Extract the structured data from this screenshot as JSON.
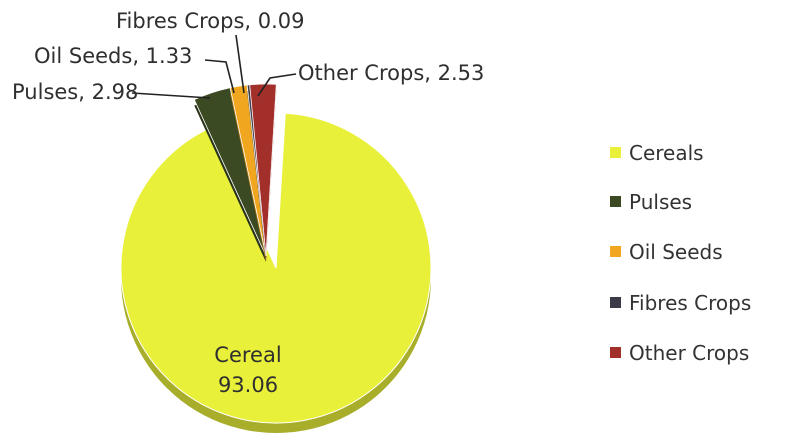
{
  "chart_data": {
    "type": "pie",
    "title": "",
    "slices": [
      {
        "legend": "Cereals",
        "label": "Cereal",
        "value": 93.06,
        "color": "#e9f03a"
      },
      {
        "legend": "Pulses",
        "label": "Pulses",
        "value": 2.98,
        "color": "#3b4a22"
      },
      {
        "legend": "Oil Seeds",
        "label": "Oil Seeds",
        "value": 1.33,
        "color": "#f0a61e"
      },
      {
        "legend": "Fibres Crops",
        "label": "Fibres Crops",
        "value": 0.09,
        "color": "#3a3a48"
      },
      {
        "legend": "Other Crops",
        "label": "Other Crops",
        "value": 2.53,
        "color": "#a32f2b"
      }
    ],
    "data_labels": [
      {
        "name": "Cereal",
        "value": "93.06"
      },
      {
        "text": "Pulses, 2.98"
      },
      {
        "text": "Oil Seeds, 1.33"
      },
      {
        "text": "Fibres Crops, 0.09"
      },
      {
        "text": "Other Crops, 2.53"
      }
    ],
    "legend_position": "right",
    "legend_items": [
      "Cereals",
      "Pulses",
      "Oil Seeds",
      "Fibres Crops",
      "Other Crops"
    ],
    "style": "3d-exploded"
  }
}
